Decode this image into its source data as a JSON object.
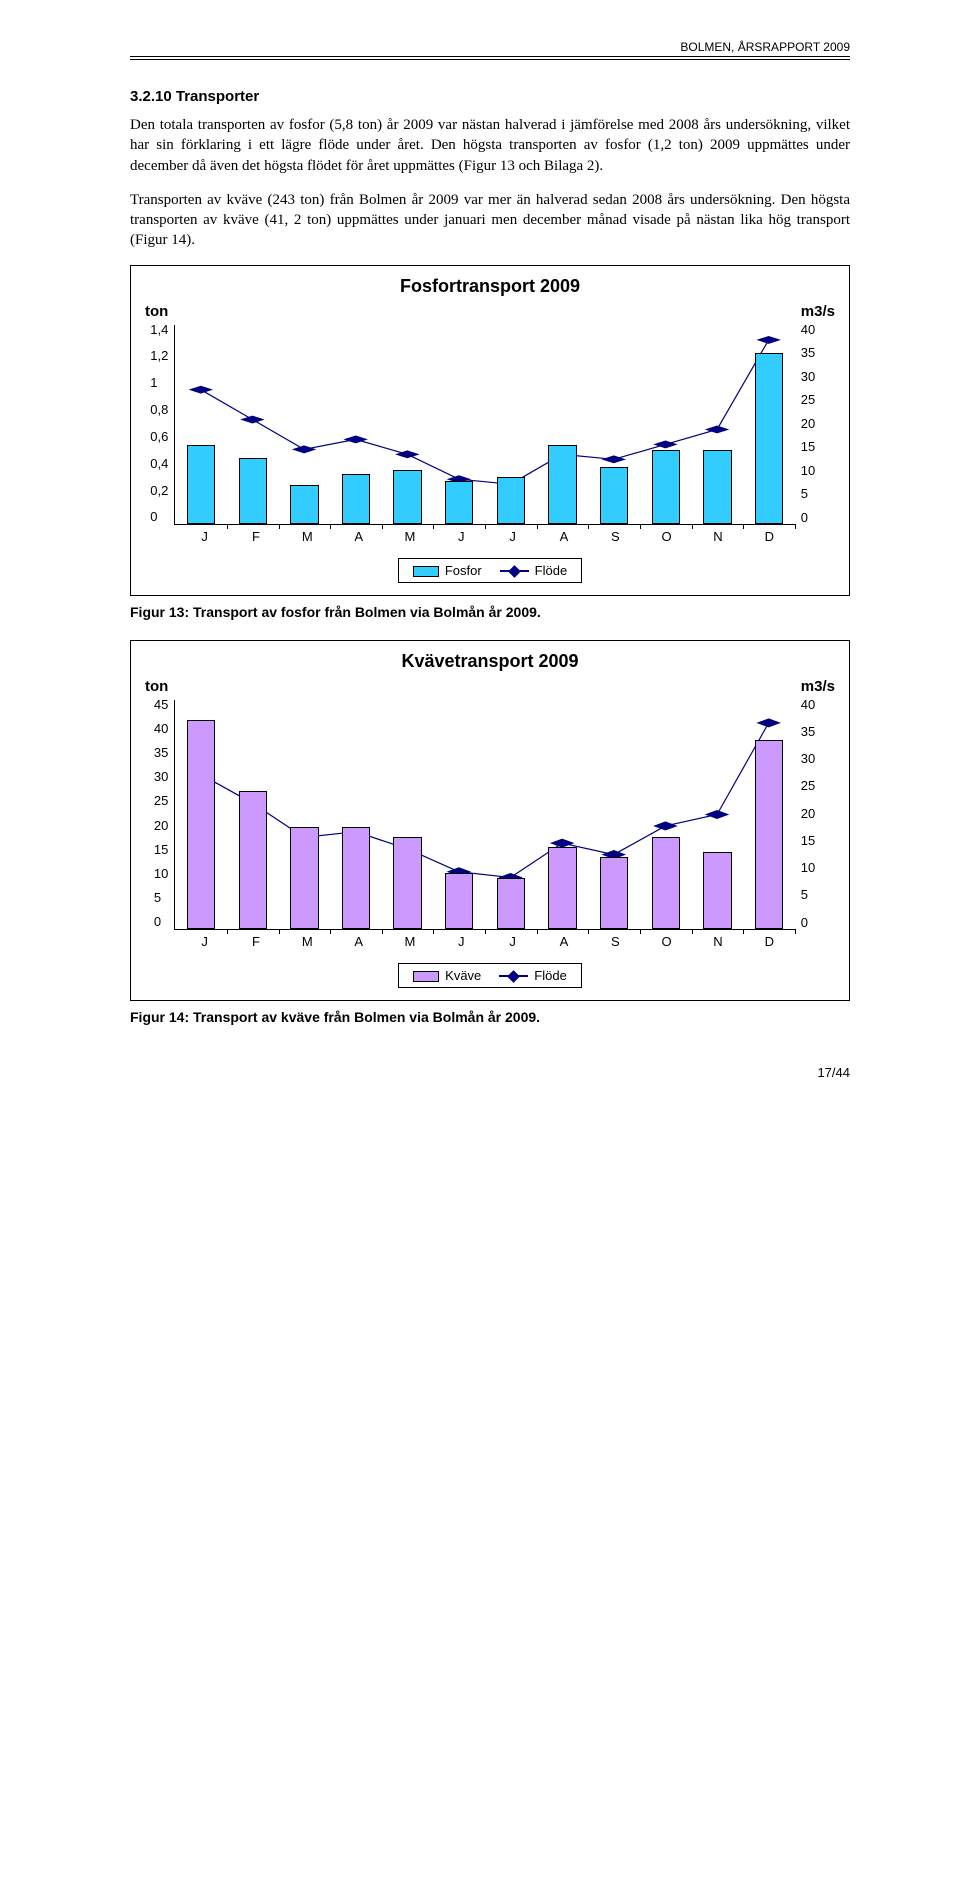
{
  "header": {
    "right_text": "BOLMEN, ÅRSRAPPORT 2009"
  },
  "section": {
    "heading": "3.2.10 Transporter",
    "para1": "Den totala transporten av fosfor (5,8 ton) år 2009 var nästan halverad i jämförelse med 2008 års undersökning, vilket har sin förklaring i ett lägre flöde under året. Den högsta transporten av fosfor (1,2 ton) 2009 uppmättes under december då även det högsta flödet för året uppmättes (Figur 13 och Bilaga 2).",
    "para2": "Transporten av kväve (243 ton) från Bolmen år 2009 var mer än halverad sedan 2008 års undersökning. Den högsta transporten av kväve (41, 2 ton) uppmättes under januari men december månad visade på nästan lika hög transport (Figur 14)."
  },
  "chart1": {
    "type": "bar+line",
    "title": "Fosfortransport 2009",
    "y_left_label": "ton",
    "y_right_label": "m3/s",
    "y_left_ticks": [
      "1,4",
      "1,2",
      "1",
      "0,8",
      "0,6",
      "0,4",
      "0,2",
      "0"
    ],
    "y_right_ticks": [
      "40",
      "35",
      "30",
      "25",
      "20",
      "15",
      "10",
      "5",
      "0"
    ],
    "y_left_max": 1.4,
    "y_right_max": 40,
    "categories": [
      "J",
      "F",
      "M",
      "A",
      "M",
      "J",
      "J",
      "A",
      "S",
      "O",
      "N",
      "D"
    ],
    "bar_values": [
      0.55,
      0.46,
      0.27,
      0.35,
      0.38,
      0.3,
      0.33,
      0.55,
      0.4,
      0.52,
      0.52,
      1.2
    ],
    "line_values": [
      27,
      21,
      15,
      17,
      14,
      9,
      8,
      14,
      13,
      16,
      19,
      37
    ],
    "bar_color": "#33ccff",
    "line_color": "#000080",
    "plot_bg": "#ffffff",
    "legend_bar": "Fosfor",
    "legend_line": "Flöde",
    "caption": "Figur 13: Transport av fosfor från Bolmen via Bolmån år 2009."
  },
  "chart2": {
    "type": "bar+line",
    "title": "Kvävetransport 2009",
    "y_left_label": "ton",
    "y_right_label": "m3/s",
    "y_left_ticks": [
      "45",
      "40",
      "35",
      "30",
      "25",
      "20",
      "15",
      "10",
      "5",
      "0"
    ],
    "y_right_ticks": [
      "40",
      "35",
      "30",
      "25",
      "20",
      "15",
      "10",
      "5",
      "0"
    ],
    "y_left_max": 45,
    "y_right_max": 40,
    "categories": [
      "J",
      "F",
      "M",
      "A",
      "M",
      "J",
      "J",
      "A",
      "S",
      "O",
      "N",
      "D"
    ],
    "bar_values": [
      41,
      27,
      20,
      20,
      18,
      11,
      10,
      16,
      14,
      18,
      15,
      37
    ],
    "line_values": [
      27,
      22,
      16,
      17,
      14,
      10,
      9,
      15,
      13,
      18,
      20,
      36
    ],
    "bar_color": "#cc99ff",
    "line_color": "#000080",
    "plot_bg": "#ffffff",
    "legend_bar": "Kväve",
    "legend_line": "Flöde",
    "caption": "Figur 14: Transport av kväve från Bolmen via Bolmån år 2009."
  },
  "footer": {
    "page": "17/44"
  }
}
